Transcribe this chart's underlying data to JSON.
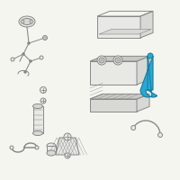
{
  "bg_color": "#f5f5f0",
  "outline_color": "#888888",
  "highlight_color": "#29a8d4",
  "highlight_edge": "#1a7fa0",
  "line_width": 0.7,
  "figsize": [
    2.0,
    2.0
  ],
  "dpi": 100,
  "gray_fill": "#e8e8e4",
  "gray_mid": "#d8d8d4",
  "gray_dark": "#c8c8c4"
}
